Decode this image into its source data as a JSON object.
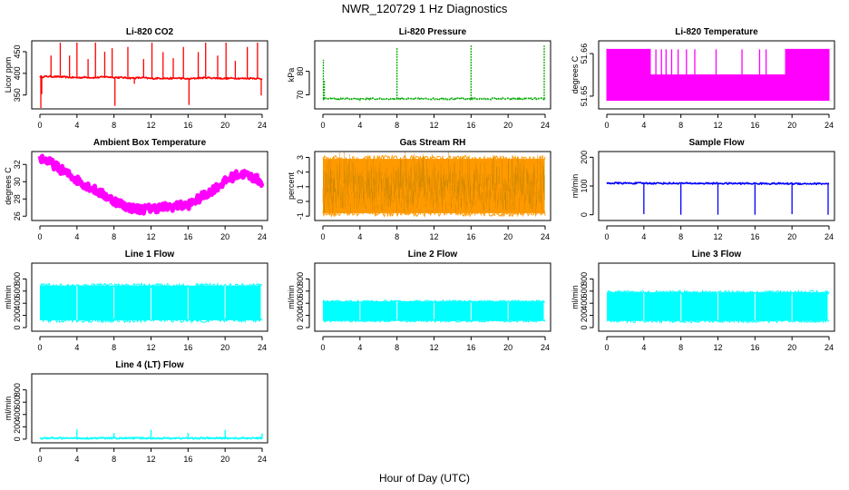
{
  "figure": {
    "title": "NWR_120729  1 Hz Diagnostics",
    "xlabel": "Hour of Day (UTC)"
  },
  "chart_data": [
    {
      "type": "line",
      "title": "Li-820 CO2",
      "ylabel": "Licor ppm",
      "color": "#ff0000",
      "xlim": [
        0,
        24
      ],
      "xticks": [
        0,
        4,
        8,
        12,
        16,
        20,
        24
      ],
      "ylim": [
        318,
        475
      ],
      "yticks": [
        350,
        400,
        450
      ],
      "x": [
        0,
        1,
        2,
        3,
        4,
        5,
        6,
        7,
        8,
        9,
        10,
        11,
        12,
        13,
        14,
        15,
        16,
        17,
        18,
        19,
        20,
        21,
        22,
        23,
        24
      ],
      "y": [
        392,
        393,
        392,
        391,
        390,
        391,
        390,
        392,
        391,
        390,
        389,
        390,
        388,
        389,
        388,
        389,
        387,
        389,
        390,
        389,
        388,
        389,
        388,
        389,
        387
      ],
      "spikes": [
        {
          "x": 0.1,
          "y": 318
        },
        {
          "x": 0.2,
          "y": 352
        },
        {
          "x": 1.2,
          "y": 441
        },
        {
          "x": 2.2,
          "y": 471
        },
        {
          "x": 3.2,
          "y": 441
        },
        {
          "x": 4.0,
          "y": 471
        },
        {
          "x": 5.2,
          "y": 433
        },
        {
          "x": 6.0,
          "y": 471
        },
        {
          "x": 7.0,
          "y": 450
        },
        {
          "x": 7.8,
          "y": 458
        },
        {
          "x": 8.1,
          "y": 325
        },
        {
          "x": 9.5,
          "y": 461
        },
        {
          "x": 10.2,
          "y": 376
        },
        {
          "x": 11.2,
          "y": 433
        },
        {
          "x": 12.1,
          "y": 471
        },
        {
          "x": 13.3,
          "y": 449
        },
        {
          "x": 14.4,
          "y": 435
        },
        {
          "x": 15.5,
          "y": 461
        },
        {
          "x": 16.1,
          "y": 327
        },
        {
          "x": 17.1,
          "y": 449
        },
        {
          "x": 17.9,
          "y": 471
        },
        {
          "x": 19.2,
          "y": 441
        },
        {
          "x": 20.1,
          "y": 471
        },
        {
          "x": 21.1,
          "y": 429
        },
        {
          "x": 22.4,
          "y": 461
        },
        {
          "x": 23.5,
          "y": 471
        },
        {
          "x": 23.9,
          "y": 349
        }
      ]
    },
    {
      "type": "line",
      "title": "Li-820 Pressure",
      "ylabel": "kPa",
      "color": "#00aa00",
      "xlim": [
        0,
        24
      ],
      "xticks": [
        0,
        4,
        8,
        12,
        16,
        20,
        24
      ],
      "ylim": [
        64,
        93
      ],
      "yticks": [
        70,
        80
      ],
      "x": [
        0,
        1,
        2,
        3,
        4,
        5,
        6,
        7,
        8,
        9,
        10,
        11,
        12,
        13,
        14,
        15,
        16,
        17,
        18,
        19,
        20,
        21,
        22,
        23,
        24
      ],
      "y": [
        68.2,
        68.3,
        68.3,
        68.3,
        68.3,
        68.3,
        68.3,
        68.3,
        68.3,
        68.3,
        68.3,
        68.3,
        68.3,
        68.3,
        68.3,
        68.3,
        68.3,
        68.3,
        68.3,
        68.3,
        68.3,
        68.3,
        68.3,
        68.3,
        68.3
      ],
      "spikes": [
        {
          "x": 0.05,
          "y": 85
        },
        {
          "x": 0.15,
          "y": 76
        },
        {
          "x": 4.0,
          "y": 67
        },
        {
          "x": 8.0,
          "y": 90
        },
        {
          "x": 16.0,
          "y": 91
        },
        {
          "x": 23.9,
          "y": 91
        }
      ]
    },
    {
      "type": "line",
      "title": "Li-820 Temperature",
      "ylabel": "degrees C",
      "color": "#ff00ff",
      "xlim": [
        0,
        24
      ],
      "xticks": [
        0,
        4,
        8,
        12,
        16,
        20,
        24
      ],
      "ylim": [
        51.647,
        51.663
      ],
      "yticks": [
        51.65,
        51.66
      ],
      "x": [
        0,
        4.7,
        4.7,
        19.3,
        19.3,
        24
      ],
      "upper": [
        51.661,
        51.661,
        51.655,
        51.655,
        51.661,
        51.661
      ],
      "lower": [
        51.649,
        51.649,
        51.649,
        51.649,
        51.649,
        51.649
      ],
      "spikes": [
        {
          "x": 5.3,
          "y": 51.661
        },
        {
          "x": 5.9,
          "y": 51.661
        },
        {
          "x": 6.4,
          "y": 51.661
        },
        {
          "x": 7.0,
          "y": 51.661
        },
        {
          "x": 7.7,
          "y": 51.661
        },
        {
          "x": 8.6,
          "y": 51.661
        },
        {
          "x": 9.5,
          "y": 51.661
        },
        {
          "x": 11.8,
          "y": 51.661
        },
        {
          "x": 14.6,
          "y": 51.661
        },
        {
          "x": 16.5,
          "y": 51.661
        },
        {
          "x": 17.2,
          "y": 51.661
        }
      ]
    },
    {
      "type": "line",
      "title": "Ambient Box Temperature",
      "ylabel": "degrees C",
      "color": "#ff00ff",
      "xlim": [
        0,
        24
      ],
      "xticks": [
        0,
        4,
        8,
        12,
        16,
        20,
        24
      ],
      "ylim": [
        25.5,
        33.5
      ],
      "yticks": [
        26,
        28,
        30,
        32
      ],
      "x": [
        0,
        1,
        2,
        3,
        4,
        5,
        6,
        7,
        8,
        9,
        10,
        11,
        12,
        13,
        14,
        15,
        16,
        17,
        18,
        19,
        20,
        21,
        22,
        23,
        24
      ],
      "y": [
        32.8,
        32.3,
        31.6,
        30.9,
        30.2,
        29.6,
        29.0,
        28.4,
        27.8,
        27.3,
        26.9,
        26.8,
        26.9,
        27.0,
        27.1,
        27.2,
        27.3,
        27.9,
        28.6,
        29.3,
        30.0,
        30.7,
        30.9,
        30.5,
        30.0
      ],
      "spread": 0.5
    },
    {
      "type": "line",
      "title": "Gas Stream RH",
      "ylabel": "percent",
      "color": "#ff9900",
      "xlim": [
        0,
        24
      ],
      "xticks": [
        0,
        4,
        8,
        12,
        16,
        20,
        24
      ],
      "ylim": [
        -1.3,
        3.4
      ],
      "yticks": [
        -1,
        0,
        1,
        2,
        3
      ],
      "x": [
        0,
        24
      ],
      "y": [
        1.1,
        1.1
      ],
      "band": [
        -0.8,
        2.9
      ]
    },
    {
      "type": "line",
      "title": "Sample Flow",
      "ylabel": "ml/min",
      "color": "#0000ff",
      "xlim": [
        0,
        24
      ],
      "xticks": [
        0,
        4,
        8,
        12,
        16,
        20,
        24
      ],
      "ylim": [
        -20,
        220
      ],
      "yticks": [
        0,
        100,
        200
      ],
      "x": [
        0,
        24
      ],
      "y": [
        110,
        108
      ],
      "spikes": [
        {
          "x": 4.0,
          "y": 2
        },
        {
          "x": 8.0,
          "y": 0
        },
        {
          "x": 12.0,
          "y": 0
        },
        {
          "x": 16.0,
          "y": 0
        },
        {
          "x": 20.0,
          "y": 2
        },
        {
          "x": 23.9,
          "y": 0
        }
      ]
    },
    {
      "type": "line",
      "title": "Line 1 Flow",
      "ylabel": "ml/min",
      "color": "#00ffff",
      "xlim": [
        0,
        24
      ],
      "xticks": [
        0,
        4,
        8,
        12,
        16,
        20,
        24
      ],
      "ylim": [
        -60,
        1060
      ],
      "yticks": [
        0,
        200,
        400,
        600,
        800
      ],
      "x": [
        0,
        24
      ],
      "y": [
        690,
        690
      ],
      "band": [
        120,
        690
      ],
      "gaps": [
        4.0,
        8.0,
        12.0,
        16.0,
        20.0,
        23.9
      ]
    },
    {
      "type": "line",
      "title": "Line 2 Flow",
      "ylabel": "ml/min",
      "color": "#00ffff",
      "xlim": [
        0,
        24
      ],
      "xticks": [
        0,
        4,
        8,
        12,
        16,
        20,
        24
      ],
      "ylim": [
        -60,
        1060
      ],
      "yticks": [
        0,
        200,
        400,
        600,
        800
      ],
      "x": [
        0,
        24
      ],
      "y": [
        430,
        430
      ],
      "band": [
        110,
        430
      ],
      "gaps": [
        4.0,
        8.0,
        12.0,
        16.0,
        20.0,
        23.9
      ]
    },
    {
      "type": "line",
      "title": "Line 3 Flow",
      "ylabel": "ml/min",
      "color": "#00ffff",
      "xlim": [
        0,
        24
      ],
      "xticks": [
        0,
        4,
        8,
        12,
        16,
        20,
        24
      ],
      "ylim": [
        -60,
        1060
      ],
      "yticks": [
        0,
        200,
        400,
        600,
        800
      ],
      "x": [
        0,
        24
      ],
      "y": [
        580,
        580
      ],
      "band": [
        110,
        580
      ],
      "gaps": [
        4.0,
        8.0,
        12.0,
        16.0,
        20.0,
        23.9
      ]
    },
    {
      "type": "line",
      "title": "Line 4 (LT) Flow",
      "ylabel": "ml/min",
      "color": "#00ffff",
      "xlim": [
        0,
        24
      ],
      "xticks": [
        0,
        4,
        8,
        12,
        16,
        20,
        24
      ],
      "ylim": [
        -60,
        1060
      ],
      "yticks": [
        0,
        200,
        400,
        600,
        800
      ],
      "x": [
        0,
        24
      ],
      "y": [
        15,
        15
      ],
      "spikes": [
        {
          "x": 4.0,
          "y": 160
        },
        {
          "x": 8.0,
          "y": 100
        },
        {
          "x": 12.0,
          "y": 150
        },
        {
          "x": 16.0,
          "y": 100
        },
        {
          "x": 20.0,
          "y": 150
        },
        {
          "x": 24.0,
          "y": 90
        }
      ]
    }
  ]
}
